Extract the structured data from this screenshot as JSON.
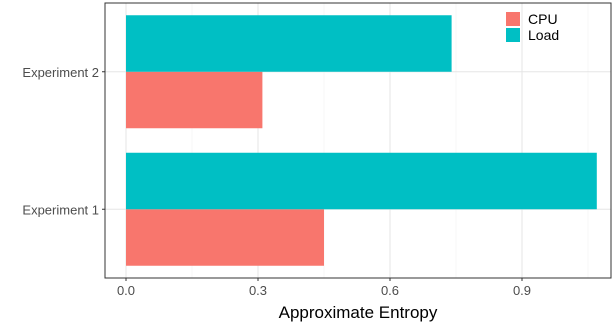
{
  "chart_data": {
    "type": "bar",
    "orientation": "horizontal",
    "title": "",
    "xlabel": "Approximate Entropy",
    "ylabel": "",
    "categories": [
      "Experiment 1",
      "Experiment 2"
    ],
    "series": [
      {
        "name": "CPU",
        "color": "#F8766D",
        "values": [
          0.45,
          0.31
        ]
      },
      {
        "name": "Load",
        "color": "#00BFC4",
        "values": [
          1.07,
          0.74
        ]
      }
    ],
    "xlim": [
      0,
      1.1
    ],
    "xticks": [
      "0.0",
      "0.3",
      "0.6",
      "0.9"
    ],
    "xtick_values": [
      0,
      0.3,
      0.6,
      0.9
    ],
    "grid": true,
    "legend_position": "top-right"
  }
}
